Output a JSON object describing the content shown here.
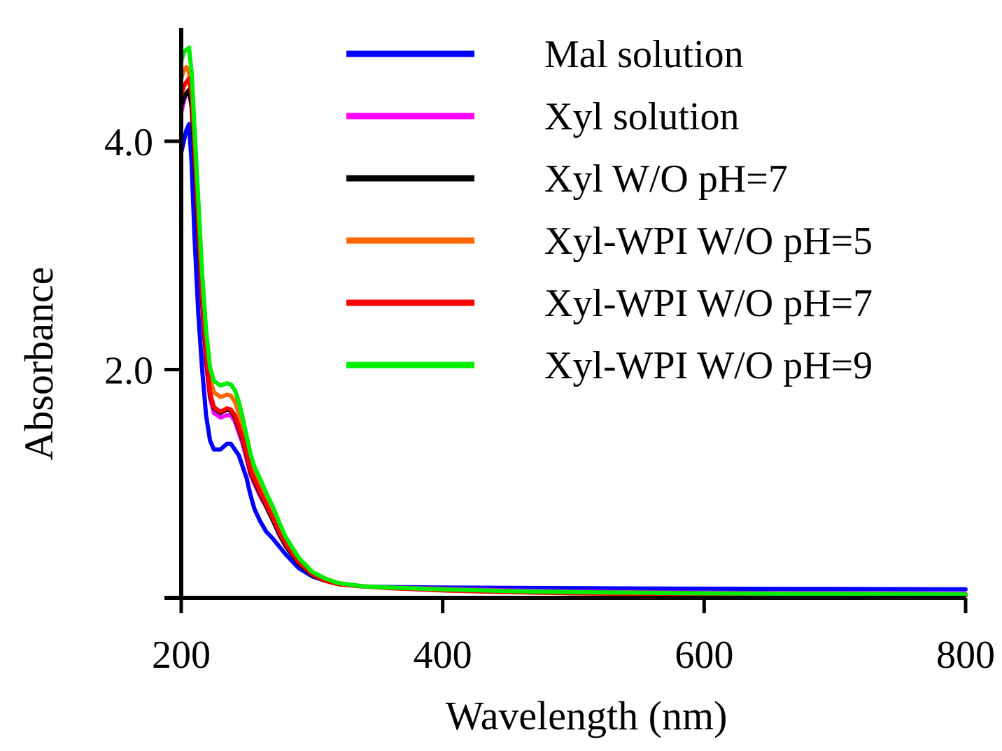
{
  "chart_data": {
    "type": "line",
    "title": "",
    "xlabel": "Wavelength (nm)",
    "ylabel": "Absorbance",
    "xlim": [
      200,
      800
    ],
    "ylim": [
      0,
      5.0
    ],
    "xticks": [
      200,
      400,
      600,
      800
    ],
    "xtick_labels": [
      "200",
      "400",
      "600",
      "800"
    ],
    "yticks": [
      2.0,
      4.0
    ],
    "ytick_labels": [
      "2.0",
      "4.0"
    ],
    "grid": false,
    "legend_position": "top-right",
    "series": [
      {
        "name": "Mal solution",
        "color": "#0000ff",
        "x": [
          200,
          202,
          204,
          206,
          208,
          210,
          213,
          216,
          219,
          222,
          225,
          230,
          235,
          238,
          241,
          244,
          247,
          250,
          253,
          256,
          260,
          265,
          270,
          275,
          280,
          290,
          300,
          310,
          320,
          340,
          360,
          400,
          450,
          500,
          550,
          600,
          700,
          800
        ],
        "y": [
          3.9,
          4.0,
          4.1,
          4.15,
          3.8,
          3.2,
          2.5,
          2.0,
          1.6,
          1.38,
          1.3,
          1.3,
          1.35,
          1.35,
          1.3,
          1.25,
          1.15,
          1.05,
          0.9,
          0.78,
          0.68,
          0.58,
          0.52,
          0.45,
          0.38,
          0.26,
          0.19,
          0.15,
          0.12,
          0.1,
          0.095,
          0.09,
          0.087,
          0.085,
          0.082,
          0.08,
          0.078,
          0.075
        ]
      },
      {
        "name": "Xyl solution",
        "color": "#ff00ff",
        "x": [
          200,
          202,
          204,
          206,
          208,
          210,
          213,
          216,
          219,
          222,
          225,
          230,
          235,
          238,
          241,
          244,
          247,
          250,
          253,
          256,
          260,
          265,
          270,
          275,
          280,
          290,
          300,
          310,
          320,
          340,
          360,
          400,
          450,
          500,
          600,
          700,
          800
        ],
        "y": [
          4.25,
          4.35,
          4.42,
          4.45,
          4.3,
          3.9,
          3.2,
          2.55,
          2.05,
          1.75,
          1.62,
          1.58,
          1.6,
          1.6,
          1.55,
          1.45,
          1.35,
          1.22,
          1.08,
          1.0,
          0.9,
          0.8,
          0.68,
          0.55,
          0.45,
          0.3,
          0.2,
          0.15,
          0.12,
          0.1,
          0.09,
          0.08,
          0.065,
          0.055,
          0.045,
          0.04,
          0.035
        ]
      },
      {
        "name": "Xyl W/O pH=7",
        "color": "#000000",
        "x": [
          200,
          202,
          204,
          206,
          208,
          210,
          213,
          216,
          219,
          222,
          225,
          230,
          235,
          238,
          241,
          244,
          247,
          250,
          253,
          256,
          260,
          265,
          270,
          275,
          280,
          290,
          300,
          310,
          320,
          340,
          360,
          400,
          450,
          500,
          600,
          700,
          800
        ],
        "y": [
          4.3,
          4.38,
          4.42,
          4.45,
          4.3,
          3.9,
          3.2,
          2.6,
          2.1,
          1.78,
          1.66,
          1.62,
          1.65,
          1.64,
          1.58,
          1.48,
          1.38,
          1.25,
          1.1,
          1.02,
          0.92,
          0.8,
          0.68,
          0.56,
          0.45,
          0.3,
          0.2,
          0.15,
          0.12,
          0.1,
          0.09,
          0.075,
          0.06,
          0.05,
          0.04,
          0.035,
          0.03
        ]
      },
      {
        "name": "Xyl-WPI W/O pH=5",
        "color": "#ff6600",
        "x": [
          200,
          202,
          204,
          206,
          208,
          210,
          213,
          216,
          219,
          222,
          225,
          230,
          235,
          238,
          241,
          244,
          247,
          250,
          253,
          256,
          260,
          265,
          270,
          275,
          280,
          290,
          300,
          310,
          320,
          340,
          360,
          400,
          450,
          500,
          600,
          700,
          800
        ],
        "y": [
          4.55,
          4.62,
          4.65,
          4.6,
          4.45,
          4.0,
          3.35,
          2.75,
          2.25,
          1.92,
          1.8,
          1.76,
          1.78,
          1.77,
          1.72,
          1.62,
          1.5,
          1.35,
          1.2,
          1.1,
          1.0,
          0.88,
          0.76,
          0.62,
          0.5,
          0.33,
          0.22,
          0.16,
          0.13,
          0.1,
          0.085,
          0.07,
          0.055,
          0.045,
          0.035,
          0.03,
          0.025
        ]
      },
      {
        "name": "Xyl-WPI W/O pH=7",
        "color": "#ff0000",
        "x": [
          200,
          202,
          204,
          206,
          208,
          210,
          213,
          216,
          219,
          222,
          225,
          230,
          235,
          238,
          241,
          244,
          247,
          250,
          253,
          256,
          260,
          265,
          270,
          275,
          280,
          290,
          300,
          310,
          320,
          340,
          360,
          400,
          450,
          500,
          600,
          700,
          800
        ],
        "y": [
          4.4,
          4.48,
          4.52,
          4.55,
          4.4,
          4.0,
          3.3,
          2.65,
          2.15,
          1.8,
          1.67,
          1.63,
          1.66,
          1.65,
          1.6,
          1.5,
          1.4,
          1.27,
          1.12,
          1.04,
          0.94,
          0.82,
          0.7,
          0.58,
          0.47,
          0.31,
          0.21,
          0.15,
          0.12,
          0.1,
          0.085,
          0.065,
          0.05,
          0.04,
          0.03,
          0.025,
          0.02
        ]
      },
      {
        "name": "Xyl-WPI W/O pH=9",
        "color": "#00ee00",
        "x": [
          200,
          202,
          204,
          206,
          208,
          210,
          213,
          216,
          219,
          222,
          225,
          230,
          235,
          238,
          241,
          244,
          247,
          250,
          253,
          256,
          260,
          265,
          270,
          275,
          280,
          290,
          300,
          310,
          320,
          340,
          360,
          400,
          450,
          500,
          600,
          700,
          800
        ],
        "y": [
          4.7,
          4.78,
          4.8,
          4.82,
          4.6,
          4.15,
          3.5,
          2.85,
          2.35,
          2.02,
          1.9,
          1.86,
          1.88,
          1.87,
          1.82,
          1.72,
          1.58,
          1.42,
          1.26,
          1.15,
          1.05,
          0.92,
          0.8,
          0.66,
          0.53,
          0.35,
          0.23,
          0.17,
          0.13,
          0.1,
          0.09,
          0.075,
          0.06,
          0.05,
          0.04,
          0.035,
          0.03
        ]
      }
    ]
  }
}
